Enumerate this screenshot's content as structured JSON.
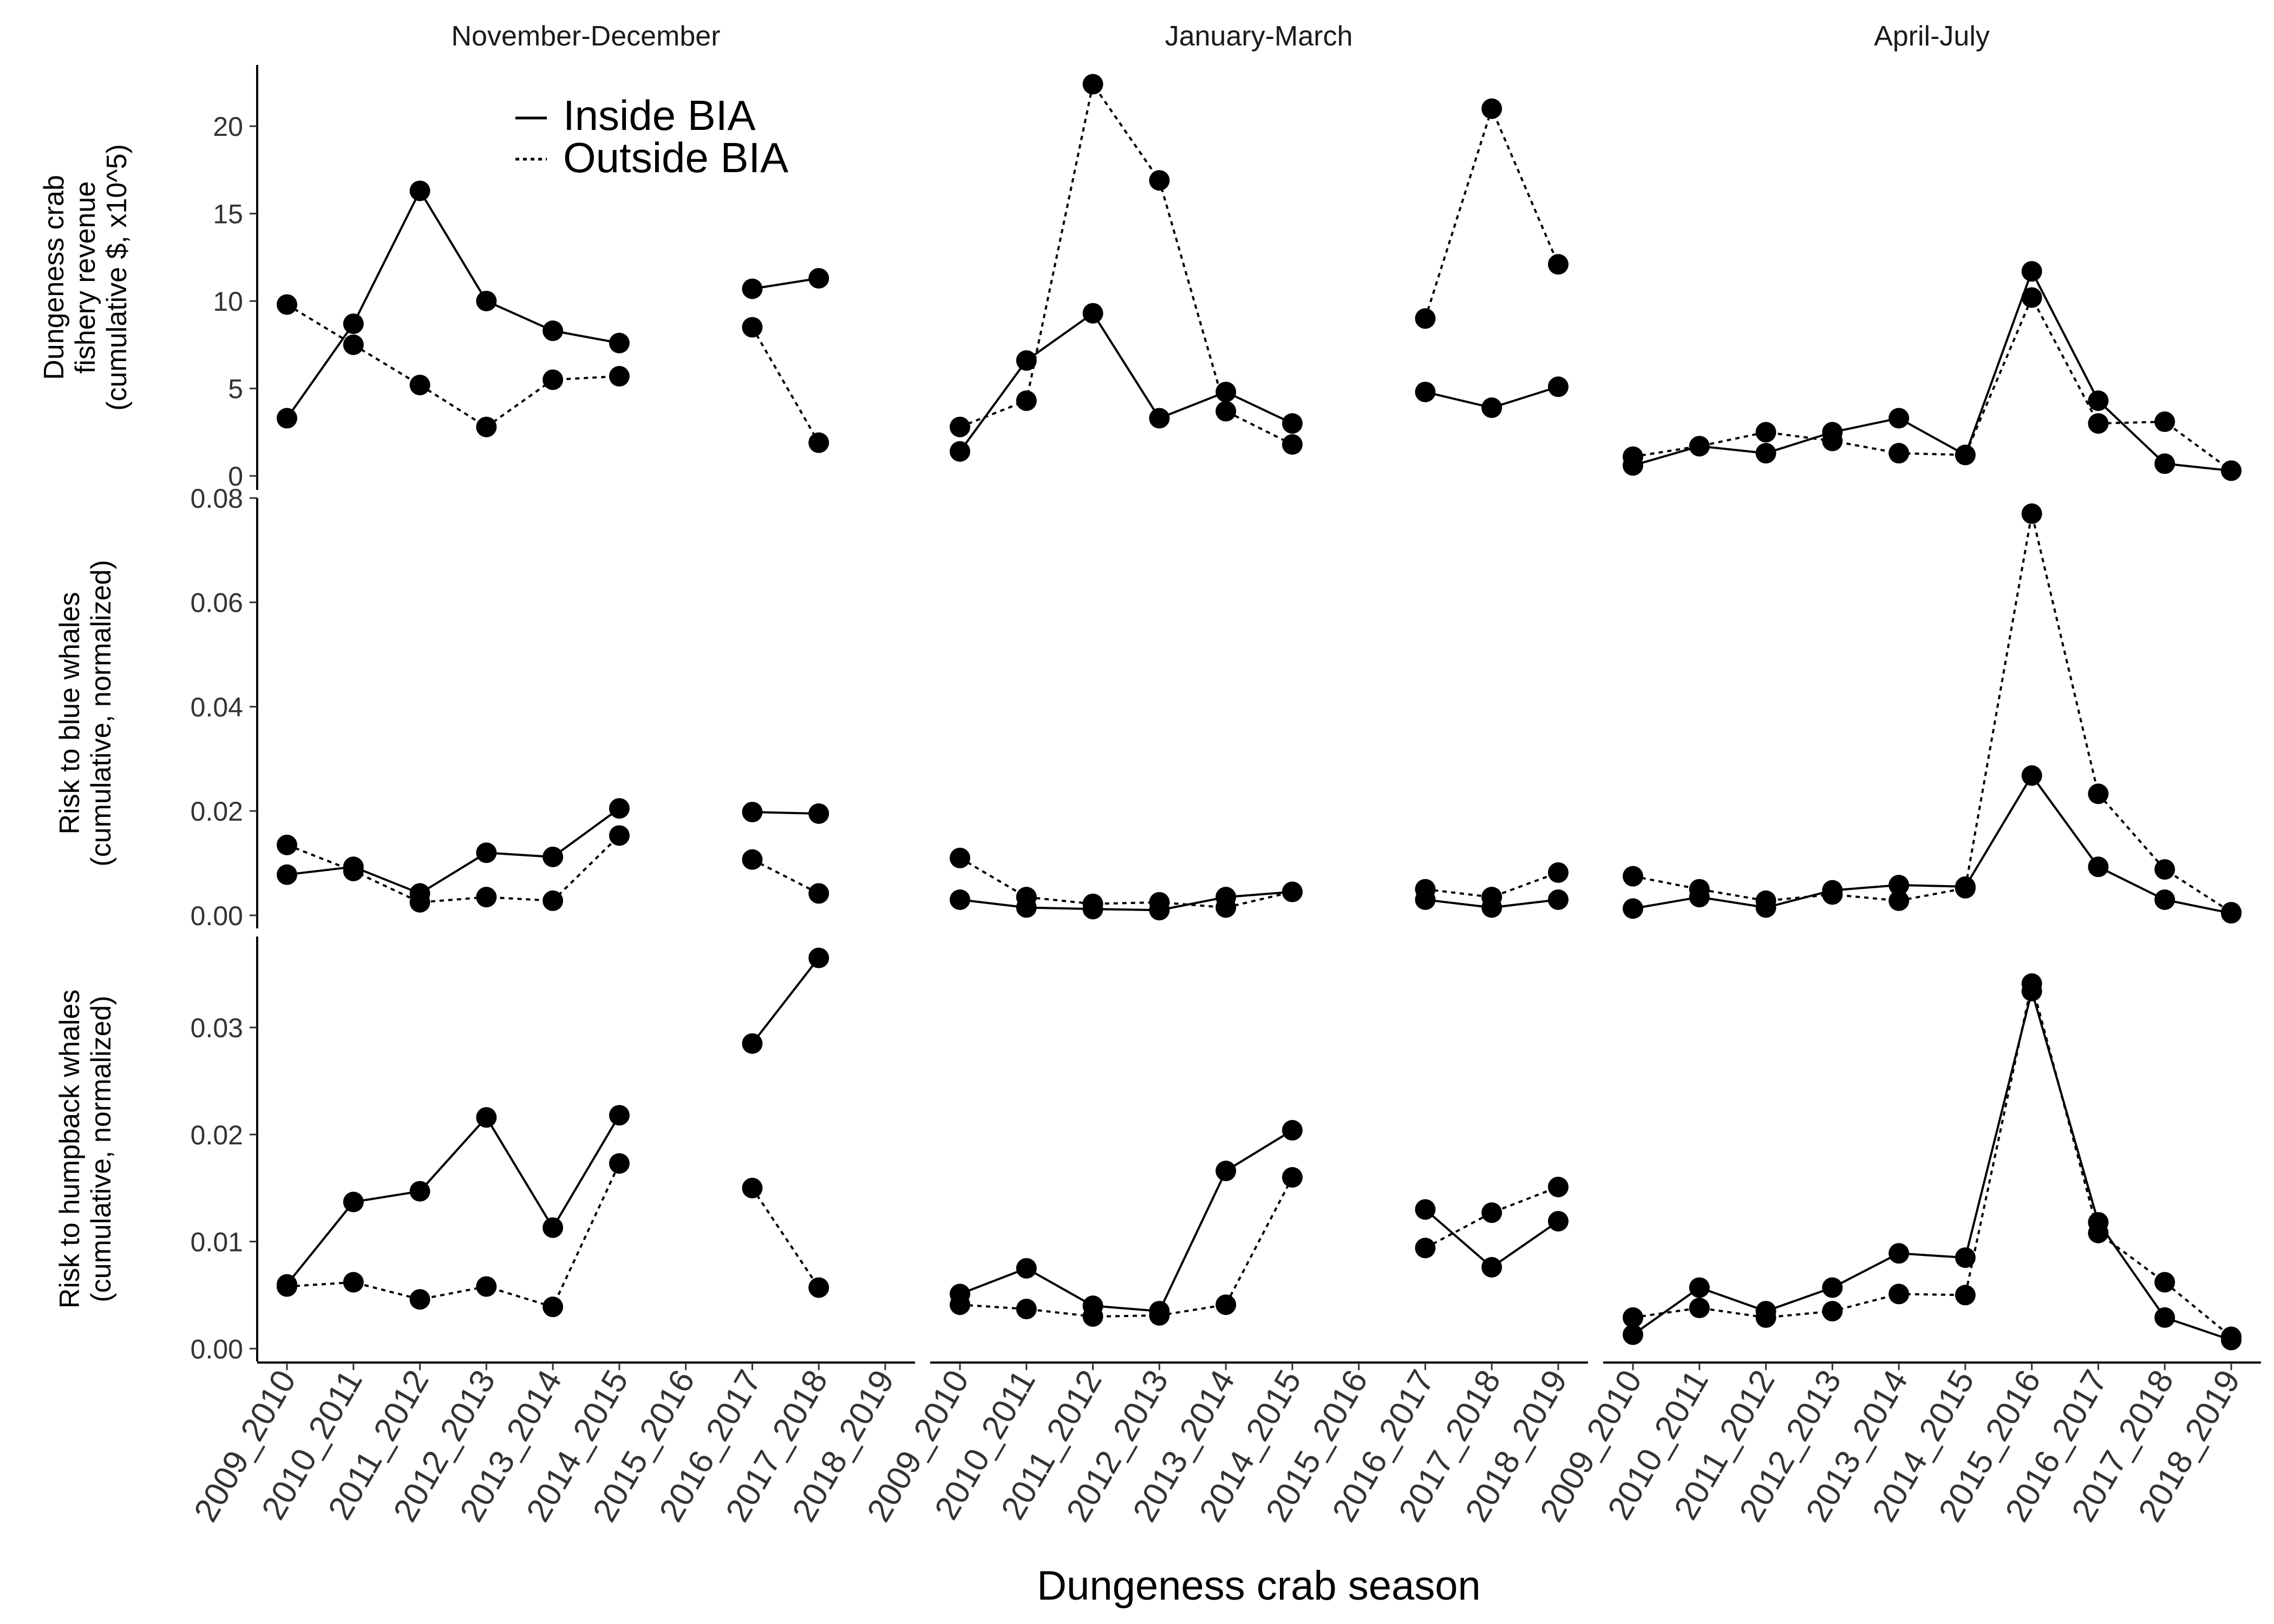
{
  "chart_data": {
    "type": "line",
    "xlabel": "Dungeness crab season",
    "categories": [
      "2009_2010",
      "2010_2011",
      "2011_2012",
      "2012_2013",
      "2013_2014",
      "2014_2015",
      "2015_2016",
      "2016_2017",
      "2017_2018",
      "2018_2019"
    ],
    "columns": [
      "November-December",
      "January-March",
      "April-July"
    ],
    "legend": {
      "position": "top-left inside first panel",
      "entries": [
        "Inside BIA",
        "Outside BIA"
      ]
    },
    "series_styles": {
      "Inside BIA": "solid",
      "Outside BIA": "dotted"
    },
    "colors": {
      "line": "#000000",
      "point": "#000000",
      "axis": "#000000",
      "text": "#333333"
    },
    "grid": false,
    "rows": [
      {
        "ylabel": [
          "Dungeness crab",
          "fishery revenue",
          "(cumulative $, x10^5)"
        ],
        "ylim": [
          -0.8,
          23.5
        ],
        "yticks": [
          0,
          5,
          10,
          15,
          20
        ],
        "yticklabels": [
          "0",
          "5",
          "10",
          "15",
          "20"
        ],
        "panels": [
          {
            "series": [
              {
                "name": "Inside BIA",
                "values": [
                  3.3,
                  8.7,
                  16.3,
                  10.0,
                  8.3,
                  7.6,
                  null,
                  10.7,
                  11.3,
                  null
                ]
              },
              {
                "name": "Outside BIA",
                "values": [
                  9.8,
                  7.5,
                  5.2,
                  2.8,
                  5.5,
                  5.7,
                  null,
                  8.5,
                  1.9,
                  null
                ]
              }
            ]
          },
          {
            "series": [
              {
                "name": "Inside BIA",
                "values": [
                  1.4,
                  6.6,
                  9.3,
                  3.3,
                  4.8,
                  3.0,
                  null,
                  4.8,
                  3.9,
                  5.1
                ]
              },
              {
                "name": "Outside BIA",
                "values": [
                  2.8,
                  4.3,
                  22.4,
                  16.9,
                  3.7,
                  1.8,
                  null,
                  9.0,
                  21.0,
                  12.1
                ]
              }
            ]
          },
          {
            "series": [
              {
                "name": "Inside BIA",
                "values": [
                  0.6,
                  1.7,
                  1.3,
                  2.5,
                  3.3,
                  1.2,
                  11.7,
                  4.3,
                  0.7,
                  0.3
                ]
              },
              {
                "name": "Outside BIA",
                "values": [
                  1.1,
                  1.7,
                  2.5,
                  2.0,
                  1.3,
                  1.2,
                  10.2,
                  3.0,
                  3.1,
                  0.3
                ]
              }
            ]
          }
        ]
      },
      {
        "ylabel": [
          "Risk to blue whales",
          "(cumulative, normalized)"
        ],
        "ylim": [
          -0.0025,
          0.08
        ],
        "yticks": [
          0,
          0.02,
          0.04,
          0.06,
          0.08
        ],
        "yticklabels": [
          "0.00",
          "0.02",
          "0.04",
          "0.06",
          "0.08"
        ],
        "panels": [
          {
            "series": [
              {
                "name": "Inside BIA",
                "values": [
                  0.0078,
                  0.0093,
                  0.0042,
                  0.012,
                  0.0112,
                  0.0205,
                  null,
                  0.0198,
                  0.0195,
                  null
                ]
              },
              {
                "name": "Outside BIA",
                "values": [
                  0.0135,
                  0.0085,
                  0.0025,
                  0.0035,
                  0.0028,
                  0.0153,
                  null,
                  0.0107,
                  0.0042,
                  null
                ]
              }
            ]
          },
          {
            "series": [
              {
                "name": "Inside BIA",
                "values": [
                  0.003,
                  0.0015,
                  0.0012,
                  0.001,
                  0.0035,
                  0.0045,
                  null,
                  0.003,
                  0.0015,
                  0.003
                ]
              },
              {
                "name": "Outside BIA",
                "values": [
                  0.011,
                  0.0035,
                  0.0022,
                  0.0025,
                  0.0015,
                  0.0045,
                  null,
                  0.005,
                  0.0035,
                  0.0082
                ]
              }
            ]
          },
          {
            "series": [
              {
                "name": "Inside BIA",
                "values": [
                  0.0013,
                  0.0035,
                  0.0015,
                  0.0048,
                  0.0058,
                  0.0055,
                  0.0268,
                  0.0093,
                  0.003,
                  0.0004
                ]
              },
              {
                "name": "Outside BIA",
                "values": [
                  0.0075,
                  0.005,
                  0.0028,
                  0.004,
                  0.0028,
                  0.0052,
                  0.077,
                  0.0233,
                  0.0088,
                  0.0006
                ]
              }
            ]
          }
        ]
      },
      {
        "ylabel": [
          "Risk to humpback whales",
          "(cumulative, normalized)"
        ],
        "ylim": [
          -0.0012,
          0.0385
        ],
        "yticks": [
          0,
          0.01,
          0.02,
          0.03
        ],
        "yticklabels": [
          "0.00",
          "0.01",
          "0.02",
          "0.03"
        ],
        "panels": [
          {
            "series": [
              {
                "name": "Inside BIA",
                "values": [
                  0.006,
                  0.0137,
                  0.0147,
                  0.0216,
                  0.0113,
                  0.0218,
                  null,
                  0.0285,
                  0.0365,
                  null
                ]
              },
              {
                "name": "Outside BIA",
                "values": [
                  0.0058,
                  0.0062,
                  0.0046,
                  0.0058,
                  0.0039,
                  0.0173,
                  null,
                  0.015,
                  0.0057,
                  null
                ]
              }
            ]
          },
          {
            "series": [
              {
                "name": "Inside BIA",
                "values": [
                  0.0051,
                  0.0075,
                  0.004,
                  0.0035,
                  0.0166,
                  0.0204,
                  null,
                  0.013,
                  0.0076,
                  0.0119
                ]
              },
              {
                "name": "Outside BIA",
                "values": [
                  0.0041,
                  0.0037,
                  0.003,
                  0.0031,
                  0.0041,
                  0.016,
                  null,
                  0.0094,
                  0.0127,
                  0.0151
                ]
              }
            ]
          },
          {
            "series": [
              {
                "name": "Inside BIA",
                "values": [
                  0.0013,
                  0.0057,
                  0.0035,
                  0.0057,
                  0.0089,
                  0.0085,
                  0.0334,
                  0.0118,
                  0.0029,
                  0.0008
                ]
              },
              {
                "name": "Outside BIA",
                "values": [
                  0.0029,
                  0.0038,
                  0.0029,
                  0.0035,
                  0.0051,
                  0.005,
                  0.0341,
                  0.0108,
                  0.0062,
                  0.0011
                ]
              }
            ]
          }
        ]
      }
    ]
  }
}
